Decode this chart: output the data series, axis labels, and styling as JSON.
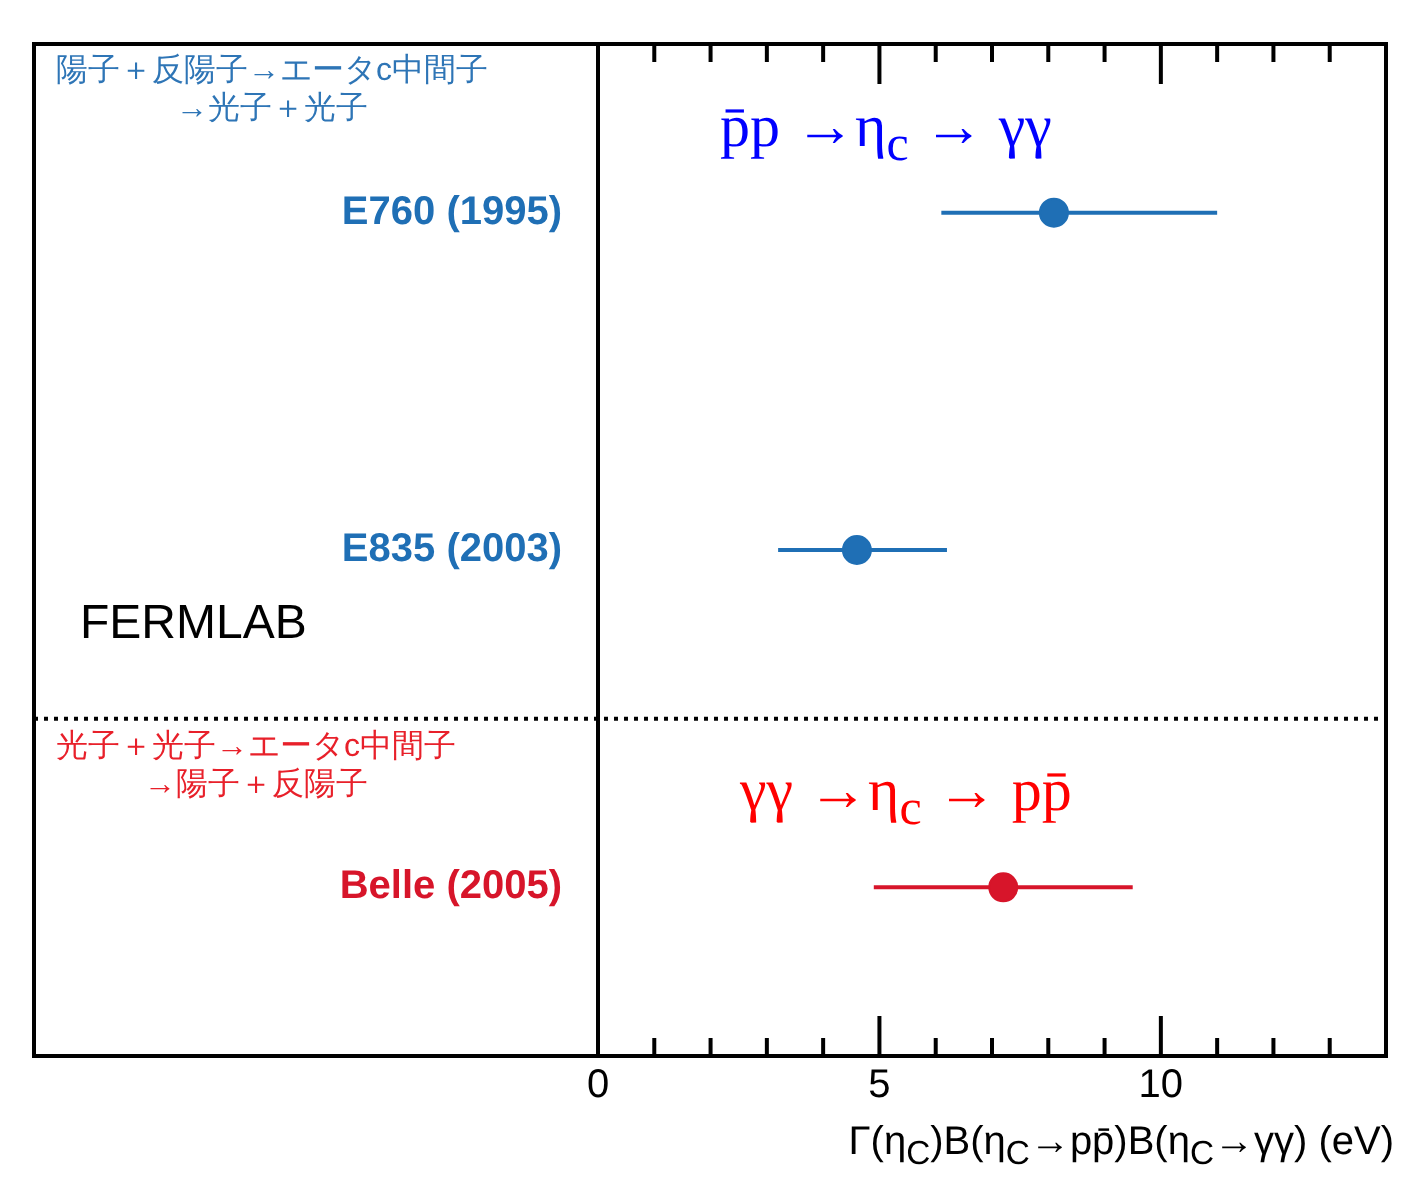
{
  "chart_data": {
    "type": "scatter",
    "orientation": "horizontal",
    "categories": [
      "E760 (1995)",
      "E835 (2003)",
      "Belle (2005)"
    ],
    "values": [
      8.1,
      4.6,
      7.2
    ],
    "errors": [
      [
        6.1,
        11.0
      ],
      [
        3.2,
        6.2
      ],
      [
        4.9,
        9.5
      ]
    ],
    "colors": [
      "#1f6fb5",
      "#1f6fb5",
      "#d7152a"
    ],
    "xlim": [
      0,
      14
    ],
    "xticks": [
      0,
      {
        "value": 1,
        "label": null
      },
      {
        "value": 2,
        "label": null
      },
      {
        "value": 3,
        "label": null
      },
      {
        "value": 4,
        "label": null
      },
      5,
      {
        "value": 6,
        "label": null
      },
      {
        "value": 7,
        "label": null
      },
      {
        "value": 8,
        "label": null
      },
      {
        "value": 9,
        "label": null
      },
      10,
      {
        "value": 11,
        "label": null
      },
      {
        "value": 12,
        "label": null
      },
      {
        "value": 13,
        "label": null
      }
    ],
    "xlabel": "Γ(η$_{C}$)B(η$_{C}$→pp̄)B(η$_{C}$→γγ) (eV)",
    "annotations": [
      "陽子＋反陽子→エータc中間子\n→光子＋光子",
      "p̄p →η$_{c}$ → γγ",
      "FERMLAB",
      "光子＋光子→エータc中間子\n→陽子＋反陽子",
      "γγ →η$_{c}$ → pp̄"
    ],
    "marker": "circle",
    "legend": false,
    "grid": false
  }
}
